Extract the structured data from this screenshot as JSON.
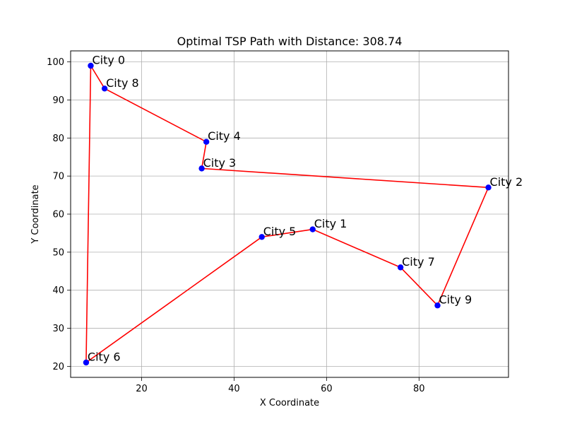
{
  "chart_data": {
    "type": "scatter",
    "title": "Optimal TSP Path with Distance: 308.74",
    "xlabel": "X Coordinate",
    "ylabel": "Y Coordinate",
    "xlim": [
      4.65,
      99.35
    ],
    "ylim": [
      17.1,
      102.9
    ],
    "xticks": [
      20,
      40,
      60,
      80
    ],
    "yticks": [
      20,
      30,
      40,
      50,
      60,
      70,
      80,
      90,
      100
    ],
    "grid": true,
    "point_color": "#0000ff",
    "path_color": "#ff0000",
    "cities": [
      {
        "name": "City 0",
        "x": 9,
        "y": 99
      },
      {
        "name": "City 1",
        "x": 57,
        "y": 56
      },
      {
        "name": "City 2",
        "x": 95,
        "y": 67
      },
      {
        "name": "City 3",
        "x": 33,
        "y": 72
      },
      {
        "name": "City 4",
        "x": 34,
        "y": 79
      },
      {
        "name": "City 5",
        "x": 46,
        "y": 54
      },
      {
        "name": "City 6",
        "x": 8,
        "y": 21
      },
      {
        "name": "City 7",
        "x": 76,
        "y": 46
      },
      {
        "name": "City 8",
        "x": 12,
        "y": 93
      },
      {
        "name": "City 9",
        "x": 84,
        "y": 36
      }
    ],
    "path_order": [
      0,
      8,
      4,
      3,
      2,
      9,
      7,
      1,
      5,
      6,
      0
    ]
  }
}
